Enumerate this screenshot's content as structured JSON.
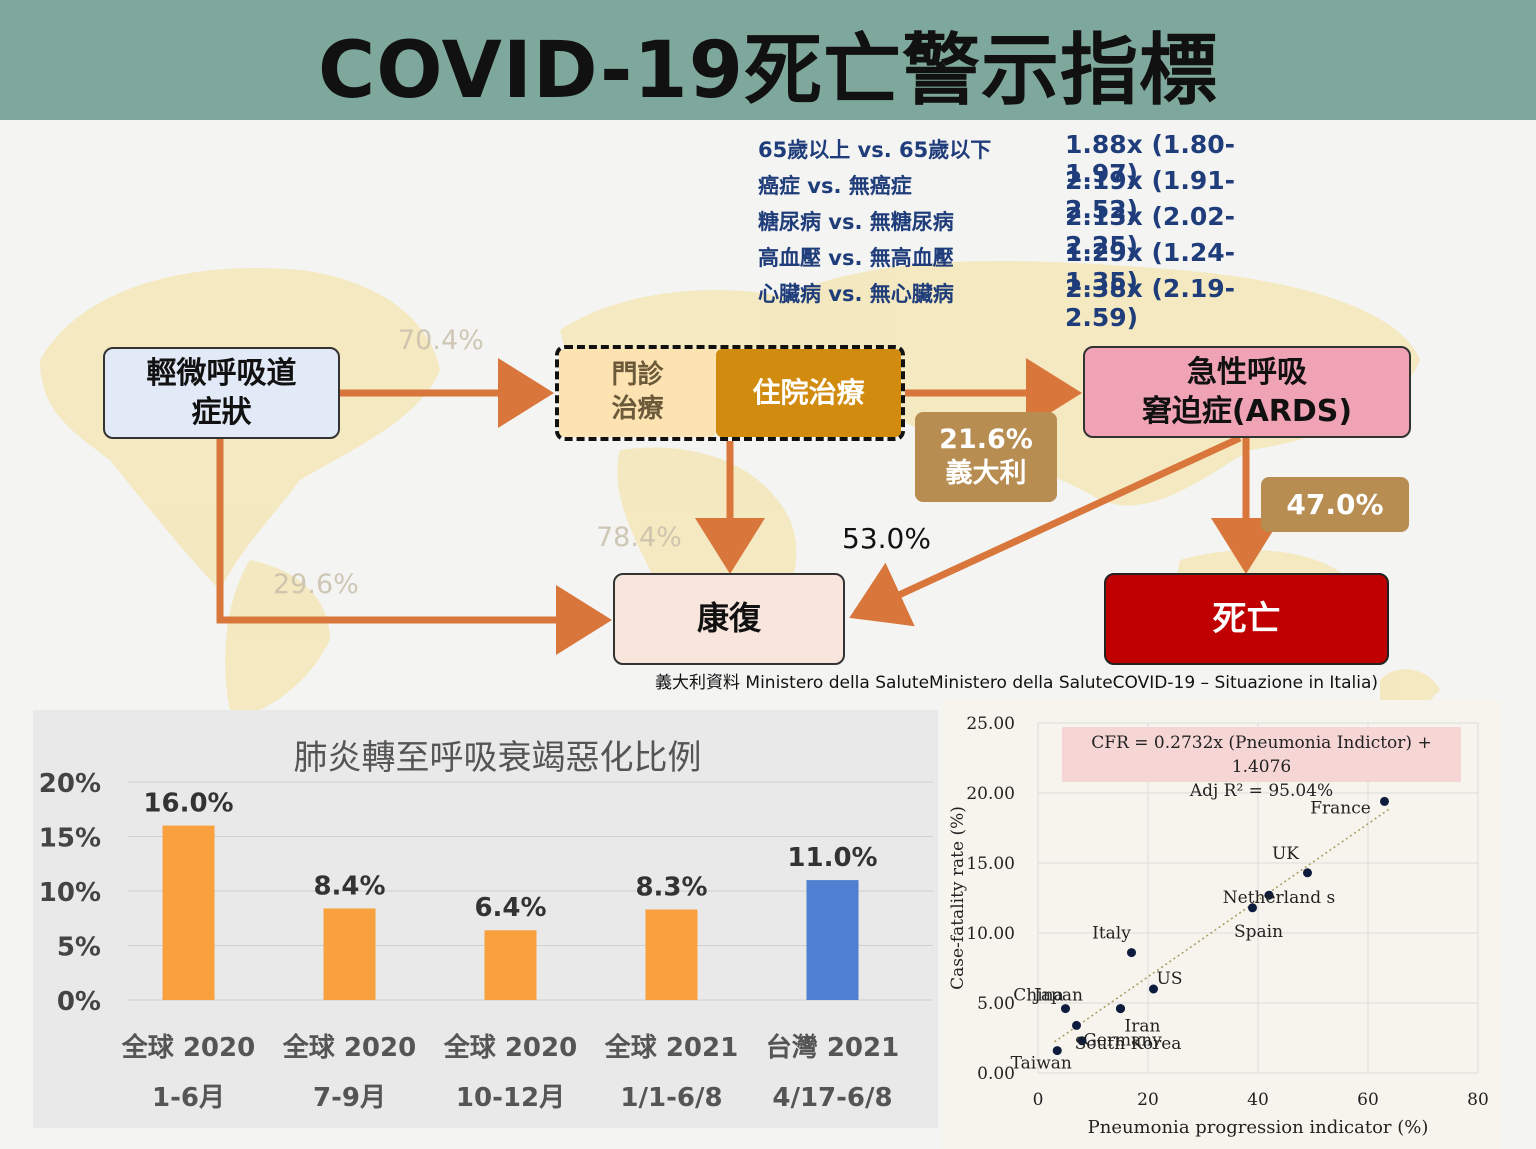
{
  "header": {
    "title": "COVID-19死亡警示指標",
    "background": "#7ea89b"
  },
  "risk_factors": [
    {
      "label": "65歲以上 vs. 65歲以下",
      "value": "1.88x (1.80-1.97)"
    },
    {
      "label": "癌症 vs. 無癌症",
      "value": "2.19x (1.91-2.52)"
    },
    {
      "label": "糖尿病 vs. 無糖尿病",
      "value": "2.13x (2.02-2.25)"
    },
    {
      "label": "高血壓 vs. 無高血壓",
      "value": "1.29x (1.24-1.35)"
    },
    {
      "label": "心臟病 vs. 無心臟病",
      "value": "2.38x (2.19-2.59)"
    }
  ],
  "flow": {
    "mild_symptoms": "輕微呼吸道\n症狀",
    "outpatient": "門診\n治療",
    "inpatient": "住院治療",
    "ards": "急性呼吸\n窘迫症(ARDS)",
    "recovery": "康復",
    "death": "死亡",
    "pct_to_care": "70.4%",
    "pct_care_recovery": "78.4%",
    "pct_mild_recovery": "29.6%",
    "pct_ards_recovery": "53.0%",
    "italy_tag": "21.6%\n義大利",
    "death_pct": "47.0%",
    "source_note": "義大利資料 Ministero della SaluteMinistero della SaluteCOVID-19 – Situazione in Italia)"
  },
  "chart_data": [
    {
      "type": "bar",
      "title": "肺炎轉至呼吸衰竭惡化比例",
      "categories": [
        [
          "全球 2020",
          "1-6月"
        ],
        [
          "全球 2020",
          "7-9月"
        ],
        [
          "全球 2020",
          "10-12月"
        ],
        [
          "全球 2021",
          "1/1-6/8"
        ],
        [
          "台灣 2021",
          "4/17-6/8"
        ]
      ],
      "values": [
        16.0,
        8.4,
        6.4,
        8.3,
        11.0
      ],
      "data_labels": [
        "16.0%",
        "8.4%",
        "6.4%",
        "8.3%",
        "11.0%"
      ],
      "colors": [
        "#f9a03f",
        "#f9a03f",
        "#f9a03f",
        "#f9a03f",
        "#4f7fd0"
      ],
      "y_ticks": [
        "0%",
        "5%",
        "10%",
        "15%",
        "20%"
      ],
      "ylim": [
        0,
        20
      ],
      "grid": true
    },
    {
      "type": "scatter",
      "xlabel": "Pneumonia progression indicator (%)",
      "ylabel": "Case-fatality rate (%)",
      "xlim": [
        0,
        80
      ],
      "ylim": [
        0,
        25
      ],
      "x_ticks": [
        "0",
        "20",
        "40",
        "60",
        "80"
      ],
      "y_ticks": [
        "0.00",
        "5.00",
        "10.00",
        "15.00",
        "20.00",
        "25.00"
      ],
      "grid": true,
      "annotation": [
        "CFR = 0.2732x (Pneumonia Indictor) + 1.4076",
        "Adj R² = 95.04%"
      ],
      "trendline": {
        "slope": 0.2732,
        "intercept": 1.4076,
        "style": "dotted"
      },
      "points": [
        {
          "label": "France",
          "x": 63,
          "y": 19.4
        },
        {
          "label": "UK",
          "x": 49,
          "y": 14.3
        },
        {
          "label": "Netherland s",
          "x": 42,
          "y": 12.7
        },
        {
          "label": "Spain",
          "x": 39,
          "y": 11.8
        },
        {
          "label": "Italy",
          "x": 17,
          "y": 8.6
        },
        {
          "label": "US",
          "x": 21,
          "y": 6.0
        },
        {
          "label": "Japan",
          "x": 15,
          "y": 4.6
        },
        {
          "label": "Iran",
          "x": 15,
          "y": 4.6
        },
        {
          "label": "China",
          "x": 5,
          "y": 4.6
        },
        {
          "label": "Germany",
          "x": 7,
          "y": 3.4
        },
        {
          "label": "South Korea",
          "x": 8,
          "y": 2.3
        },
        {
          "label": "Taiwan",
          "x": 3.5,
          "y": 1.6
        }
      ]
    }
  ]
}
